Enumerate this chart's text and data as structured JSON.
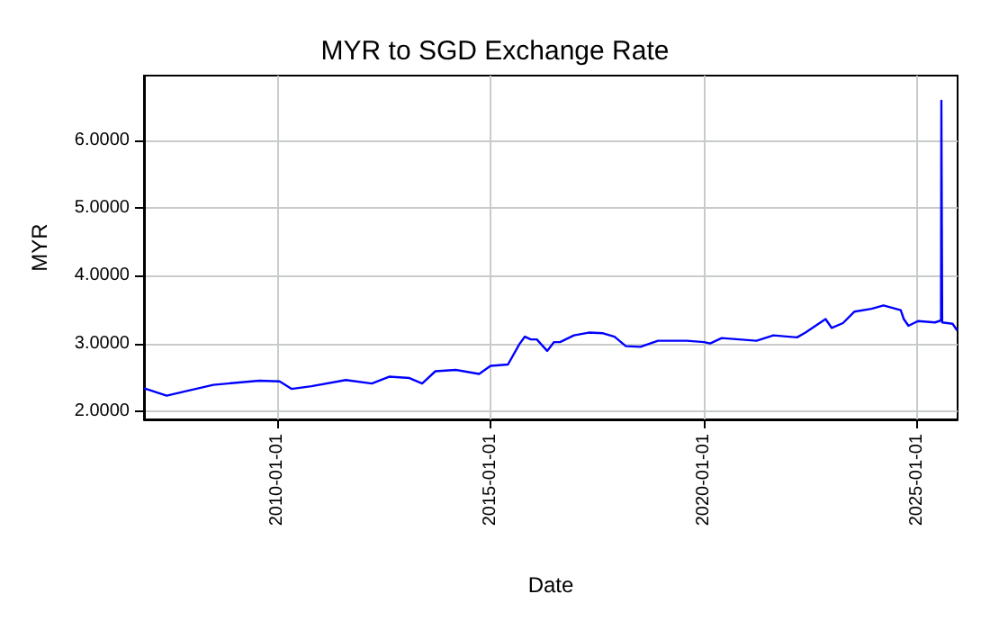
{
  "chart_data": {
    "type": "line",
    "title": "MYR to SGD Exchange Rate",
    "xlabel": "Date",
    "ylabel": "MYR",
    "x": [
      "2006-11-15",
      "2007-05-28",
      "2008-02-01",
      "2008-07-01",
      "2009-07-30",
      "2010-01-20",
      "2010-05-01",
      "2010-10-20",
      "2011-08-10",
      "2012-03-20",
      "2012-08-15",
      "2013-02-05",
      "2013-05-25",
      "2013-09-15",
      "2014-03-10",
      "2014-09-25",
      "2015-01-01",
      "2015-05-30",
      "2015-09-05",
      "2015-10-22",
      "2015-12-12",
      "2016-02-01",
      "2016-04-30",
      "2016-06-28",
      "2016-08-18",
      "2016-12-15",
      "2017-04-20",
      "2017-08-22",
      "2017-11-28",
      "2018-03-05",
      "2018-07-08",
      "2018-12-05",
      "2019-08-10",
      "2020-01-05",
      "2020-02-25",
      "2020-06-03",
      "2021-03-28",
      "2021-08-20",
      "2022-03-10",
      "2022-05-22",
      "2022-11-10",
      "2023-01-01",
      "2023-04-08",
      "2023-07-16",
      "2023-12-08",
      "2024-03-20",
      "2024-08-15",
      "2024-09-10",
      "2024-10-20",
      "2025-01-10",
      "2025-06-05",
      "2025-07-26",
      "2025-07-29",
      "2025-08-05",
      "2025-11-02",
      "2025-12-12"
    ],
    "series": [
      {
        "color": "#0000ff",
        "values": [
          2.34,
          2.23,
          2.33,
          2.39,
          2.45,
          2.44,
          2.33,
          2.37,
          2.46,
          2.41,
          2.51,
          2.49,
          2.41,
          2.59,
          2.61,
          2.55,
          2.67,
          2.69,
          2.99,
          3.1,
          3.06,
          3.06,
          2.89,
          3.02,
          3.02,
          3.12,
          3.16,
          3.15,
          3.1,
          2.96,
          2.95,
          3.04,
          3.04,
          3.02,
          3.0,
          3.08,
          3.04,
          3.12,
          3.09,
          3.16,
          3.36,
          3.23,
          3.3,
          3.47,
          3.51,
          3.56,
          3.49,
          3.36,
          3.26,
          3.33,
          3.31,
          3.34,
          6.58,
          3.31,
          3.29,
          3.19
        ]
      }
    ],
    "xlim": [
      "2006-11-15",
      "2025-12-15"
    ],
    "xticks": [
      "2010-01-01",
      "2015-01-01",
      "2020-01-01",
      "2025-01-01"
    ],
    "ylim": [
      1.88,
      6.95
    ],
    "yticks": [
      {
        "value": 2,
        "label": "2.0000"
      },
      {
        "value": 3,
        "label": "3.0000"
      },
      {
        "value": 4,
        "label": "4.0000"
      },
      {
        "value": 5,
        "label": "5.0000"
      },
      {
        "value": 6,
        "label": "6.0000"
      }
    ],
    "grid": true,
    "marker": "none",
    "line_style": "solid"
  }
}
